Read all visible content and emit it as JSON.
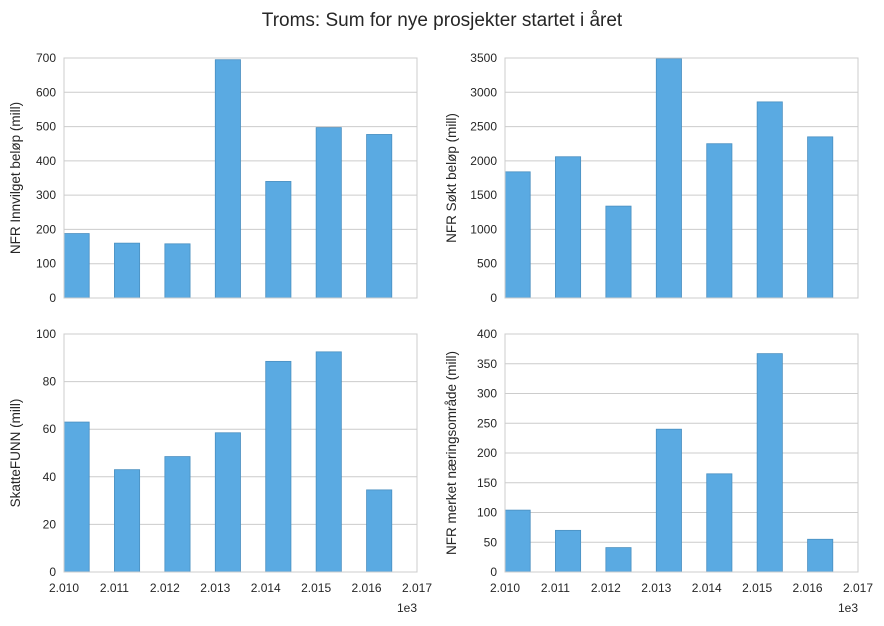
{
  "figure": {
    "title": "Troms: Sum for nye prosjekter startet i året"
  },
  "chart_data": [
    {
      "type": "bar",
      "ylabel": "NFR Innvilget beløp (mill)",
      "x": [
        2010,
        2011,
        2012,
        2013,
        2014,
        2015,
        2016
      ],
      "values": [
        188,
        160,
        158,
        695,
        340,
        497,
        477
      ],
      "ylim": [
        0,
        700
      ],
      "yticks": [
        "0",
        "100",
        "200",
        "300",
        "400",
        "500",
        "600",
        "700"
      ],
      "xlim": [
        2010,
        2017
      ],
      "xticks": [],
      "x_offset_label": "",
      "grid": "horizontal",
      "bar_color": "#5aaae2"
    },
    {
      "type": "bar",
      "ylabel": "NFR Søkt beløp (mill)",
      "x": [
        2010,
        2011,
        2012,
        2013,
        2014,
        2015,
        2016
      ],
      "values": [
        1840,
        2060,
        1340,
        3490,
        2250,
        2860,
        2350
      ],
      "ylim": [
        0,
        3500
      ],
      "yticks": [
        "0",
        "500",
        "1000",
        "1500",
        "2000",
        "2500",
        "3000",
        "3500"
      ],
      "xlim": [
        2010,
        2017
      ],
      "xticks": [],
      "x_offset_label": "",
      "grid": "horizontal",
      "bar_color": "#5aaae2"
    },
    {
      "type": "bar",
      "ylabel": "SkatteFUNN (mill)",
      "x": [
        2010,
        2011,
        2012,
        2013,
        2014,
        2015,
        2016
      ],
      "values": [
        63,
        43,
        48.5,
        58.5,
        88.5,
        92.5,
        34.5
      ],
      "ylim": [
        0,
        100
      ],
      "yticks": [
        "0",
        "20",
        "40",
        "60",
        "80",
        "100"
      ],
      "xlim": [
        2010,
        2017
      ],
      "xticks": [
        "2.010",
        "2.011",
        "2.012",
        "2.013",
        "2.014",
        "2.015",
        "2.016",
        "2.017"
      ],
      "x_offset_label": "1e3",
      "grid": "horizontal",
      "bar_color": "#5aaae2"
    },
    {
      "type": "bar",
      "ylabel": "NFR merket næringsområde (mill)",
      "x": [
        2010,
        2011,
        2012,
        2013,
        2014,
        2015,
        2016
      ],
      "values": [
        104,
        70,
        41,
        240,
        165,
        367,
        55
      ],
      "ylim": [
        0,
        400
      ],
      "yticks": [
        "0",
        "50",
        "100",
        "150",
        "200",
        "250",
        "300",
        "350",
        "400"
      ],
      "xlim": [
        2010,
        2017
      ],
      "xticks": [
        "2.010",
        "2.011",
        "2.012",
        "2.013",
        "2.014",
        "2.015",
        "2.016",
        "2.017"
      ],
      "x_offset_label": "1e3",
      "grid": "horizontal",
      "bar_color": "#5aaae2"
    }
  ]
}
